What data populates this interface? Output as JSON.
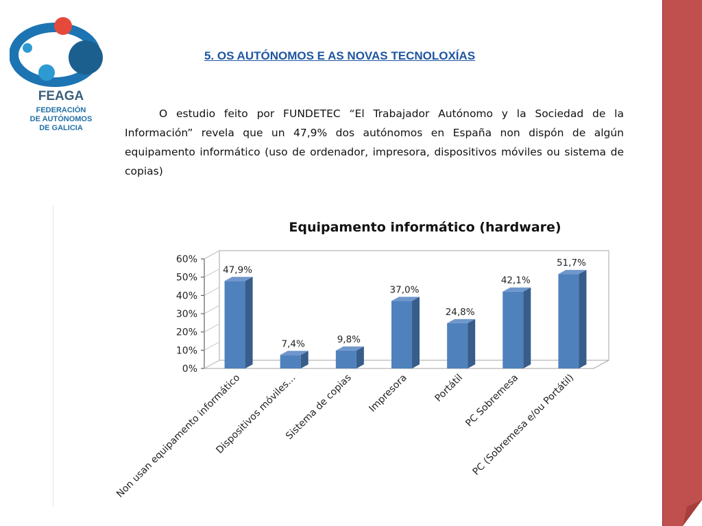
{
  "logo": {
    "name": "FEAGA",
    "line1": "FEDERACIÓN",
    "line2": "DE AUTÓNOMOS",
    "line3": "DE GALICIA"
  },
  "slide": {
    "title": "5. OS AUTÓNOMOS E AS NOVAS TECNOLOXÍAS",
    "body": "O estudio feito por FUNDETEC “El Trabajador Autónomo y la Sociedad de la Información” revela que un 47,9% dos autónomos en España non dispón de algún equipamento informático (uso de ordenador, impresora, dispositivos móviles ou sistema de copias)"
  },
  "colors": {
    "bar_front": "#4f81bd",
    "bar_side": "#385d8a",
    "bar_top": "#6f97cc",
    "title_blue": "#1f55a0",
    "side_panel": "#c0504d"
  },
  "chart_data": {
    "type": "bar",
    "title": "Equipamento informático (hardware)",
    "categories": [
      "Non usan equipamento informático",
      "Dispositivos móviles…",
      "Sistema de copias",
      "Impresora",
      "Portátil",
      "PC Sobremesa",
      "PC (Sobremesa e/ou Portátil)"
    ],
    "values": [
      47.9,
      7.4,
      9.8,
      37.0,
      24.8,
      42.1,
      51.7
    ],
    "data_labels": [
      "47,9%",
      "7,4%",
      "9,8%",
      "37,0%",
      "24,8%",
      "42,1%",
      "51,7%"
    ],
    "y_ticks": [
      0,
      10,
      20,
      30,
      40,
      50,
      60
    ],
    "y_tick_labels": [
      "0%",
      "10%",
      "20%",
      "30%",
      "40%",
      "50%",
      "60%"
    ],
    "ylim": [
      0,
      60
    ],
    "grid": false,
    "style": "3d-column"
  }
}
